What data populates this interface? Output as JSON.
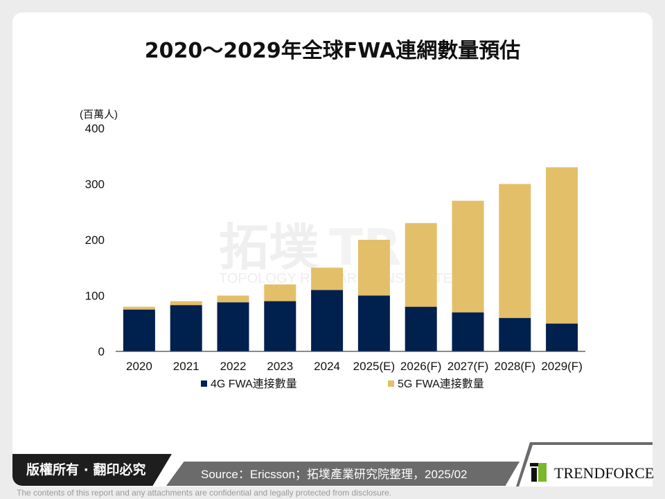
{
  "title": "2020～2029年全球FWA連網數量預估",
  "chart_data": {
    "type": "bar",
    "stacked": true,
    "title": "2020～2029年全球FWA連網數量預估",
    "ylabel": "(百萬人)",
    "ylim": [
      0,
      400
    ],
    "yticks": [
      "0",
      "100",
      "200",
      "300",
      "400"
    ],
    "categories": [
      "2020",
      "2021",
      "2022",
      "2023",
      "2024",
      "2025(E)",
      "2026(F)",
      "2027(F)",
      "2028(F)",
      "2029(F)"
    ],
    "series": [
      {
        "name": "4G FWA連接數量",
        "color": "#00204e",
        "values": [
          75,
          83,
          88,
          90,
          110,
          100,
          80,
          70,
          60,
          50
        ]
      },
      {
        "name": "5G FWA連接數量",
        "color": "#e3bf6a",
        "values": [
          5,
          7,
          12,
          30,
          40,
          100,
          150,
          200,
          240,
          280
        ]
      }
    ],
    "grid": false,
    "legend": "bottom"
  },
  "watermark": {
    "cn": "拓墣",
    "en": "TOPOLOGY RESEARCH INSTITUTE",
    "mark": "TRI"
  },
  "footer": {
    "copyright": "版權所有 · 翻印必究",
    "source": "Source：Ericsson；拓墣產業研究院整理，2025/02",
    "logo": "TRENDFORCE",
    "disclaimer": "The contents of this report and any attachments are confidential and legally protected from disclosure."
  }
}
